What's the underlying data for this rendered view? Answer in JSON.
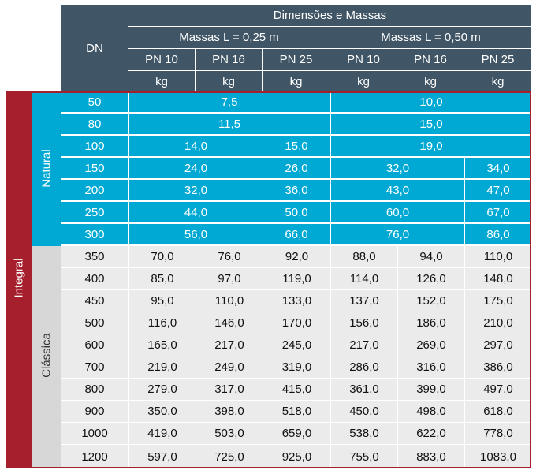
{
  "header": {
    "dn": "DN",
    "dimensoes": "Dimensões e Massas",
    "massas_025": "Massas L = 0,25 m",
    "massas_050": "Massas L = 0,50 m",
    "pn": [
      "PN 10",
      "PN 16",
      "PN 25",
      "PN 10",
      "PN 16",
      "PN 25"
    ],
    "unit": "kg"
  },
  "labels": {
    "integral": "Integral",
    "natural": "Natural",
    "classica": "Clássica"
  },
  "colors": {
    "header_bg": "#405565",
    "natural_bg": "#00a9d3",
    "classica_bg": "#ebebeb",
    "integral_bar": "#a51f2c"
  },
  "natural_rows": [
    {
      "dn": "50",
      "a": "7,5",
      "b": "10,0"
    },
    {
      "dn": "80",
      "a": "11,5",
      "b": "15,0"
    },
    {
      "dn": "100",
      "a": "14,0",
      "a25": "15,0",
      "b": "19,0"
    },
    {
      "dn": "150",
      "a": "24,0",
      "a25": "26,0",
      "b": "32,0",
      "b25": "34,0"
    },
    {
      "dn": "200",
      "a": "32,0",
      "a25": "36,0",
      "b": "43,0",
      "b25": "47,0"
    },
    {
      "dn": "250",
      "a": "44,0",
      "a25": "50,0",
      "b": "60,0",
      "b25": "67,0"
    },
    {
      "dn": "300",
      "a": "56,0",
      "a25": "66,0",
      "b": "76,0",
      "b25": "86,0"
    }
  ],
  "classica_rows": [
    {
      "dn": "350",
      "v": [
        "70,0",
        "76,0",
        "92,0",
        "88,0",
        "94,0",
        "110,0"
      ]
    },
    {
      "dn": "400",
      "v": [
        "85,0",
        "97,0",
        "119,0",
        "114,0",
        "126,0",
        "148,0"
      ]
    },
    {
      "dn": "450",
      "v": [
        "95,0",
        "110,0",
        "133,0",
        "137,0",
        "152,0",
        "175,0"
      ]
    },
    {
      "dn": "500",
      "v": [
        "116,0",
        "146,0",
        "170,0",
        "156,0",
        "186,0",
        "210,0"
      ]
    },
    {
      "dn": "600",
      "v": [
        "165,0",
        "217,0",
        "245,0",
        "217,0",
        "269,0",
        "297,0"
      ]
    },
    {
      "dn": "700",
      "v": [
        "219,0",
        "249,0",
        "319,0",
        "286,0",
        "316,0",
        "386,0"
      ]
    },
    {
      "dn": "800",
      "v": [
        "279,0",
        "317,0",
        "415,0",
        "361,0",
        "399,0",
        "497,0"
      ]
    },
    {
      "dn": "900",
      "v": [
        "350,0",
        "398,0",
        "518,0",
        "450,0",
        "498,0",
        "618,0"
      ]
    },
    {
      "dn": "1000",
      "v": [
        "419,0",
        "503,0",
        "659,0",
        "538,0",
        "622,0",
        "778,0"
      ]
    },
    {
      "dn": "1200",
      "v": [
        "597,0",
        "725,0",
        "925,0",
        "755,0",
        "883,0",
        "1083,0"
      ]
    }
  ]
}
